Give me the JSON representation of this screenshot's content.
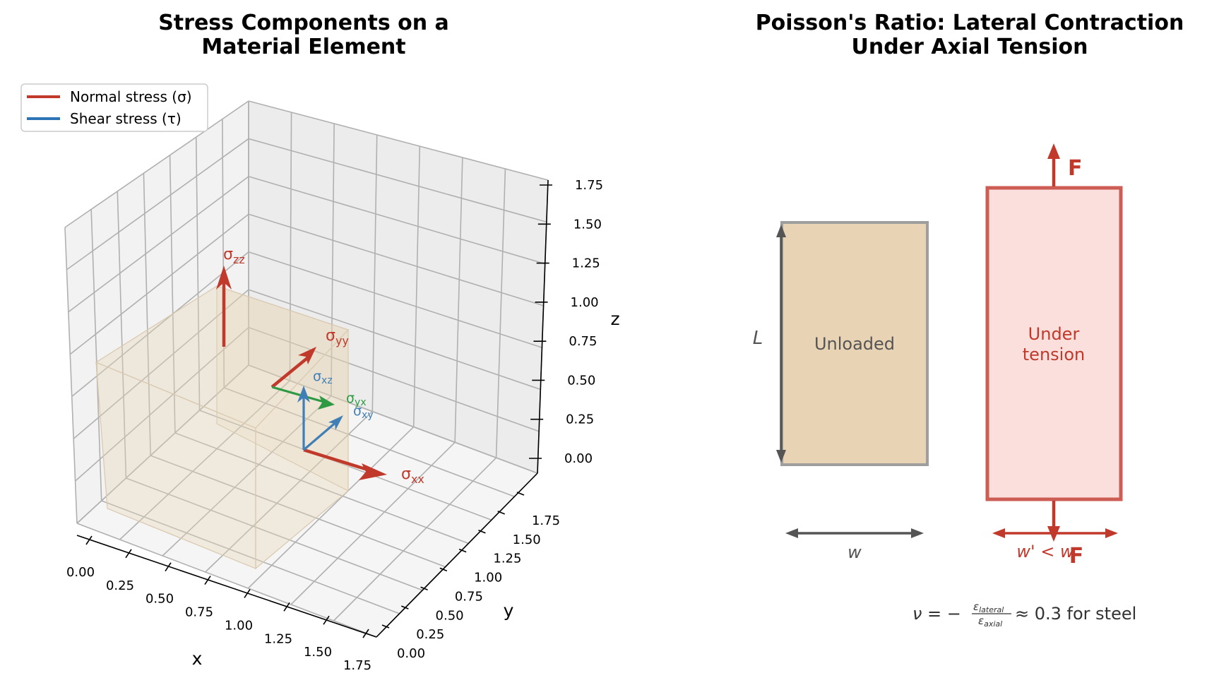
{
  "left_panel": {
    "title_line1": "Stress Components on a",
    "title_line2": "Material Element",
    "legend": [
      {
        "label": "Normal stress (σ)",
        "color": "#c0392b"
      },
      {
        "label": "Shear stress (τ)",
        "color": "#2e75b6"
      }
    ],
    "axes": {
      "xlabel": "x",
      "ylabel": "y",
      "zlabel": "z",
      "x_ticks": [
        "0.00",
        "0.25",
        "0.50",
        "0.75",
        "1.00",
        "1.25",
        "1.50",
        "1.75"
      ],
      "y_ticks": [
        "0.00",
        "0.25",
        "0.50",
        "0.75",
        "1.00",
        "1.25",
        "1.50",
        "1.75"
      ],
      "z_ticks": [
        "0.00",
        "0.25",
        "0.50",
        "0.75",
        "1.00",
        "1.25",
        "1.50",
        "1.75"
      ]
    },
    "labels": {
      "sigma_zz_main": "σ",
      "sigma_zz_sub": "zz",
      "sigma_yy_main": "σ",
      "sigma_yy_sub": "yy",
      "sigma_xx_main": "σ",
      "sigma_xx_sub": "xx",
      "sigma_xz_main": "σ",
      "sigma_xz_sub": "xz",
      "sigma_yx_main": "σ",
      "sigma_yx_sub": "yx",
      "sigma_xy_main": "σ",
      "sigma_xy_sub": "xy"
    },
    "colors": {
      "normal": "#c0392b",
      "shear": "#3f7fb5",
      "shear_alt": "#2e9a44",
      "cube_fill": "#e8d5b5"
    }
  },
  "right_panel": {
    "title_line1": "Poisson's Ratio: Lateral Contraction",
    "title_line2": "Under Axial Tension",
    "unloaded_label": "Unloaded",
    "tension_label_line1": "Under",
    "tension_label_line2": "tension",
    "length_label": "L",
    "width_label": "w",
    "width_prime_label": "w' < w",
    "force_label_top": "F",
    "force_label_bottom": "F",
    "formula_lhs": "ν = −",
    "formula_num": "ε",
    "formula_num_sub": "lateral",
    "formula_den": "ε",
    "formula_den_sub": "axial",
    "formula_rhs": "≈ 0.3 for steel",
    "colors": {
      "unloaded_fill": "#e8d3b4",
      "unloaded_edge": "#9e9e9e",
      "tension_fill": "#fbdfdd",
      "tension_edge": "#cd5c55",
      "force": "#c0392b",
      "dim": "#555555"
    }
  }
}
